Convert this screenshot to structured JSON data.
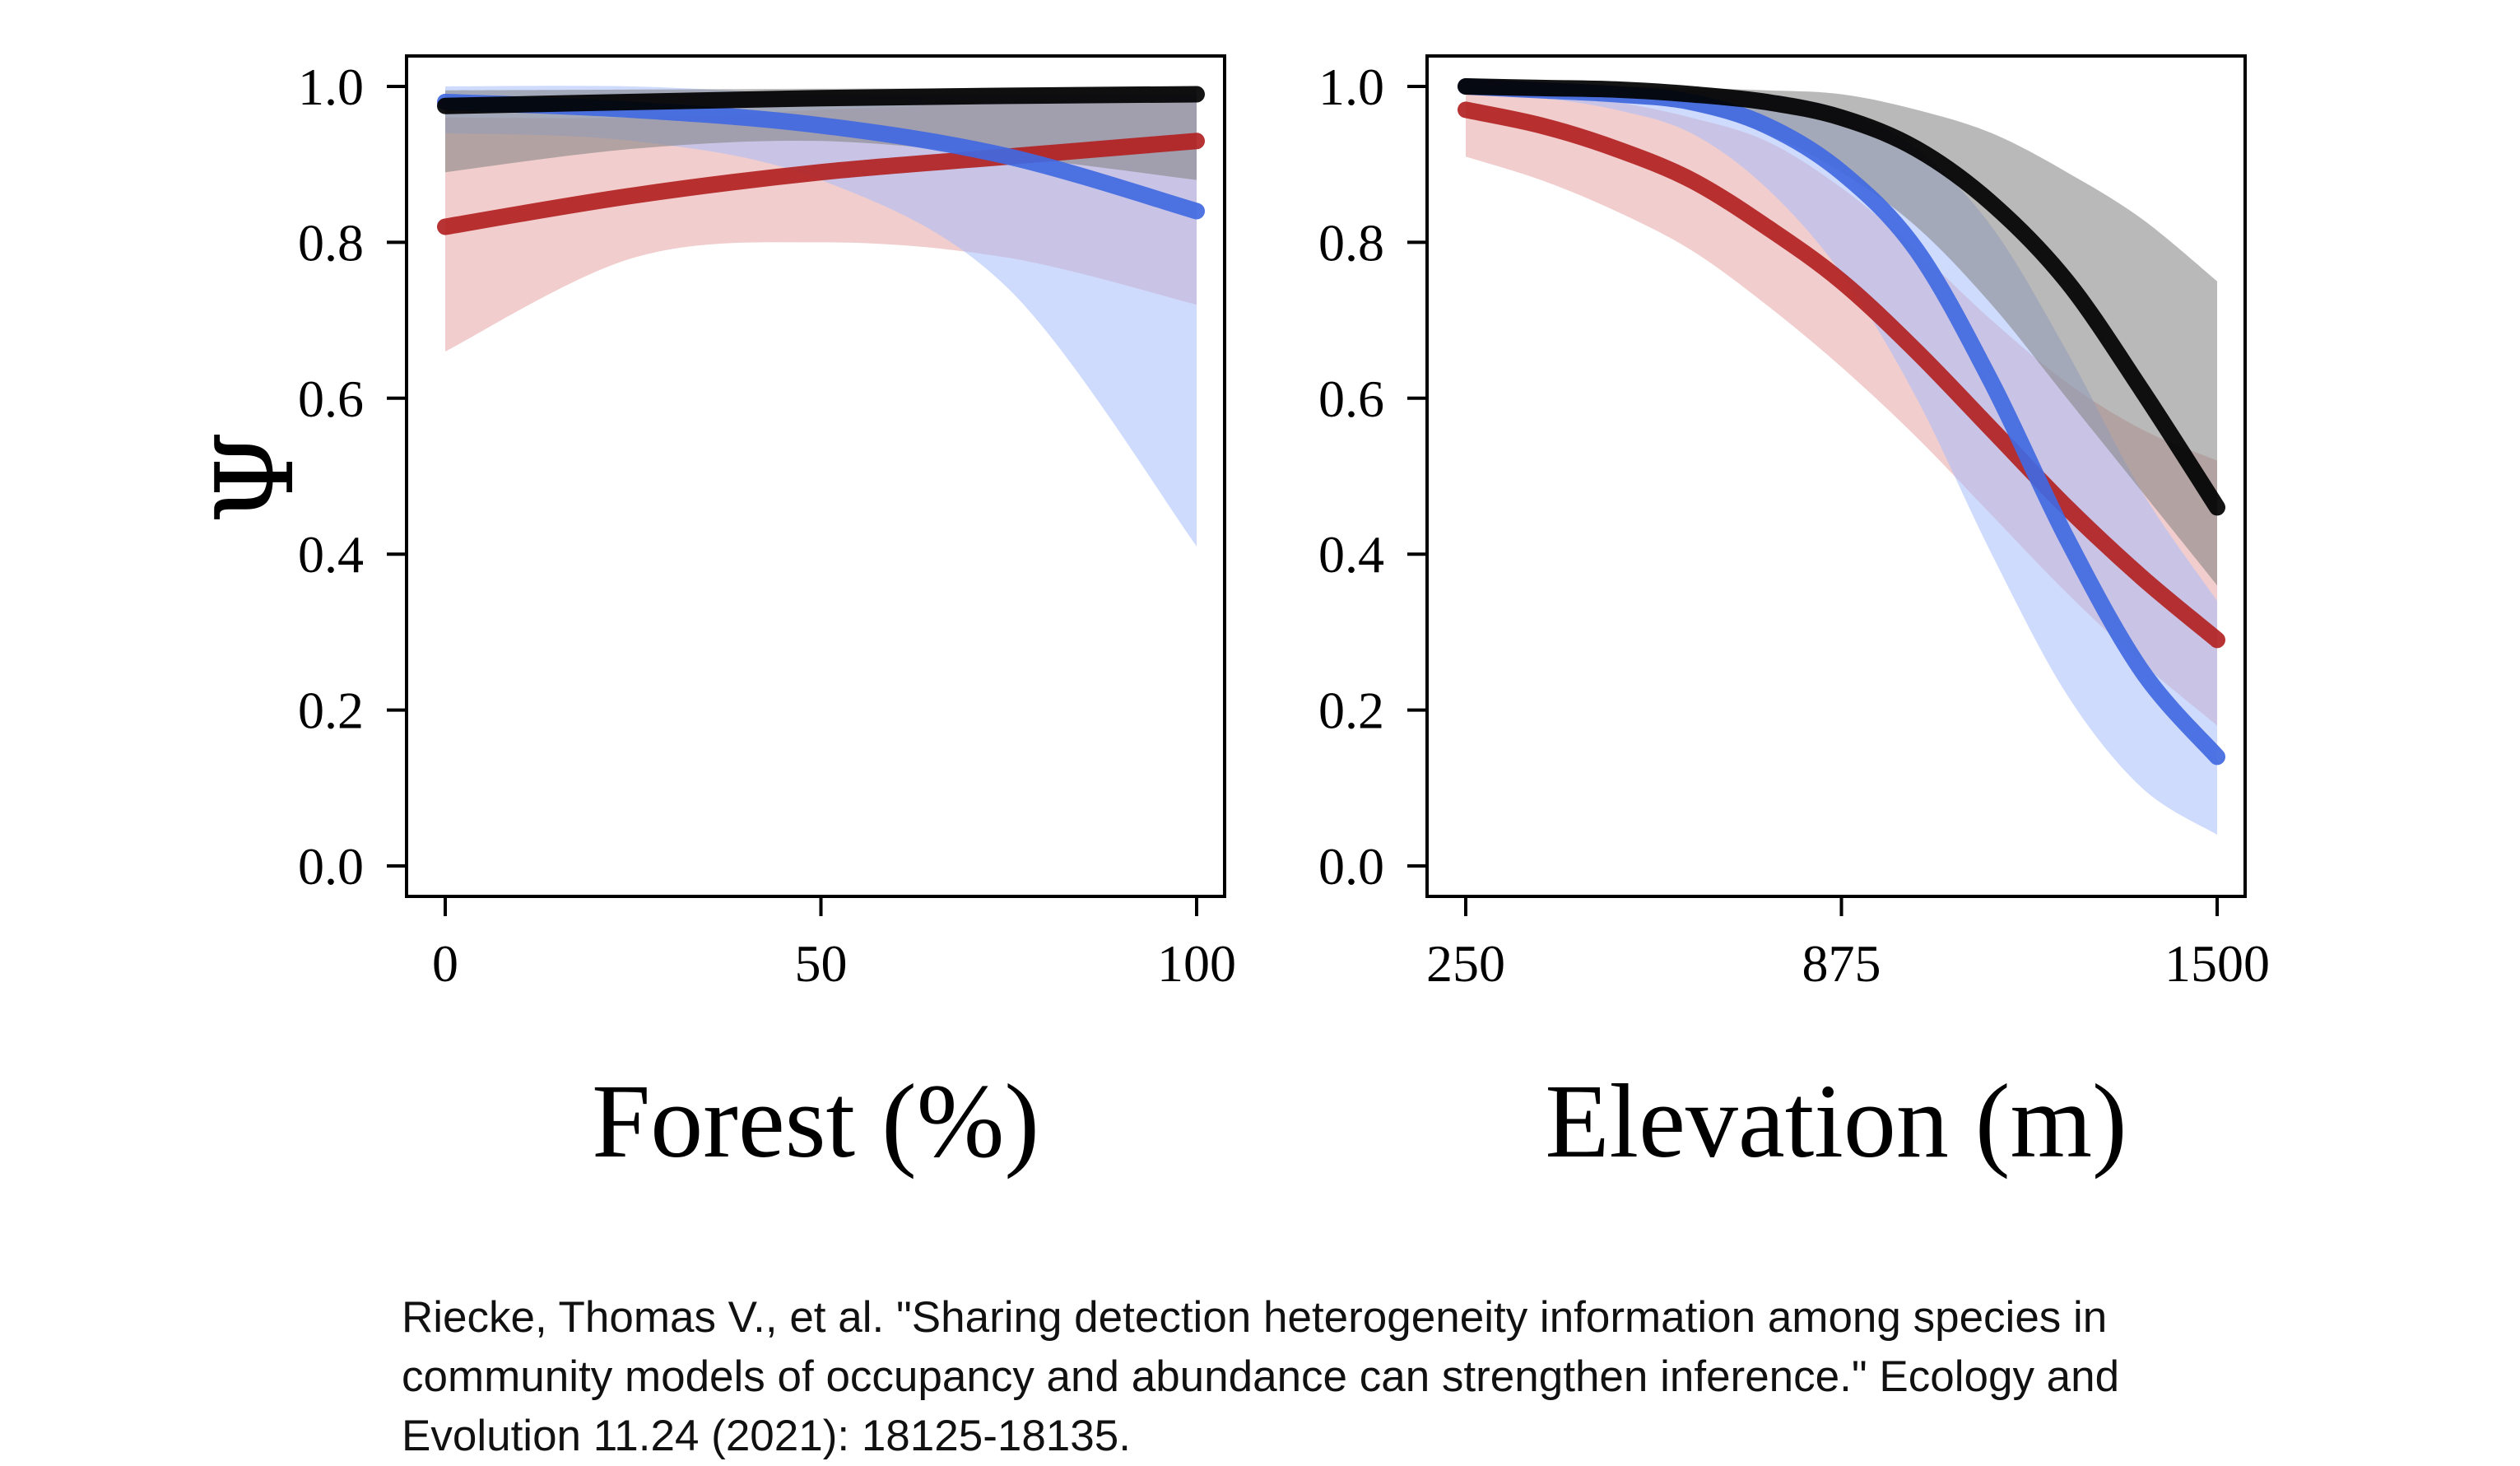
{
  "y_axis_label": "Ψ",
  "citation": "Riecke, Thomas V., et al. \"Sharing detection heterogeneity information among species in community models of occupancy and abundance can strengthen inference.\" Ecology and Evolution 11.24 (2021): 18125-18135.",
  "colors": {
    "black_series": "#000000",
    "red_series": "#b22222",
    "blue_series": "#4169e1",
    "black_band": "#808080",
    "red_band": "#e6a4a4",
    "blue_band": "#a7bdfb"
  },
  "chart_data": [
    {
      "type": "line",
      "xlabel": "Forest (%)",
      "ylabel": "Ψ",
      "xlim": [
        0,
        100
      ],
      "ylim": [
        0.0,
        1.0
      ],
      "x_ticks": [
        0,
        50,
        100
      ],
      "y_ticks": [
        "0.0",
        "0.2",
        "0.4",
        "0.6",
        "0.8",
        "1.0"
      ],
      "grid": false,
      "x": [
        0,
        25,
        50,
        75,
        100
      ],
      "series": [
        {
          "color": "#b22222",
          "values": [
            0.82,
            0.86,
            0.89,
            0.91,
            0.93
          ],
          "lower": [
            0.66,
            0.78,
            0.8,
            0.78,
            0.72
          ],
          "upper": [
            0.96,
            0.96,
            0.97,
            0.98,
            0.99
          ]
        },
        {
          "color": "#4169e1",
          "values": [
            0.98,
            0.97,
            0.95,
            0.91,
            0.84
          ],
          "lower": [
            0.94,
            0.93,
            0.88,
            0.74,
            0.41
          ],
          "upper": [
            1.0,
            1.0,
            0.99,
            0.99,
            0.99
          ]
        },
        {
          "color": "#000000",
          "values": [
            0.975,
            0.98,
            0.985,
            0.988,
            0.99
          ],
          "lower": [
            0.89,
            0.92,
            0.93,
            0.91,
            0.88
          ],
          "upper": [
            0.995,
            0.996,
            0.997,
            0.998,
            0.999
          ]
        }
      ]
    },
    {
      "type": "line",
      "xlabel": "Elevation (m)",
      "ylabel": "",
      "xlim": [
        250,
        1500
      ],
      "ylim": [
        0.0,
        1.0
      ],
      "x_ticks": [
        250,
        875,
        1500
      ],
      "y_ticks": [
        "0.0",
        "0.2",
        "0.4",
        "0.6",
        "0.8",
        "1.0"
      ],
      "grid": false,
      "x": [
        250,
        375,
        500,
        625,
        750,
        875,
        1000,
        1125,
        1250,
        1375,
        1500
      ],
      "series": [
        {
          "color": "#b22222",
          "values": [
            0.97,
            0.95,
            0.92,
            0.88,
            0.82,
            0.75,
            0.66,
            0.56,
            0.46,
            0.37,
            0.29
          ],
          "lower": [
            0.91,
            0.88,
            0.84,
            0.79,
            0.72,
            0.64,
            0.55,
            0.45,
            0.35,
            0.26,
            0.18
          ],
          "upper": [
            0.99,
            0.99,
            0.98,
            0.96,
            0.93,
            0.87,
            0.79,
            0.7,
            0.62,
            0.56,
            0.52
          ]
        },
        {
          "color": "#4169e1",
          "values": [
            1.0,
            0.995,
            0.99,
            0.98,
            0.95,
            0.89,
            0.79,
            0.62,
            0.42,
            0.25,
            0.14
          ],
          "lower": [
            0.99,
            0.985,
            0.97,
            0.94,
            0.87,
            0.76,
            0.6,
            0.4,
            0.22,
            0.1,
            0.04
          ],
          "upper": [
            1.0,
            1.0,
            0.998,
            0.995,
            0.99,
            0.97,
            0.92,
            0.82,
            0.66,
            0.48,
            0.34
          ]
        },
        {
          "color": "#000000",
          "values": [
            1.0,
            0.998,
            0.996,
            0.99,
            0.98,
            0.96,
            0.92,
            0.85,
            0.75,
            0.61,
            0.46
          ],
          "lower": [
            0.99,
            0.99,
            0.98,
            0.97,
            0.94,
            0.89,
            0.82,
            0.72,
            0.6,
            0.48,
            0.36
          ],
          "upper": [
            1.0,
            1.0,
            1.0,
            0.998,
            0.995,
            0.99,
            0.97,
            0.94,
            0.89,
            0.83,
            0.75
          ]
        }
      ]
    }
  ]
}
